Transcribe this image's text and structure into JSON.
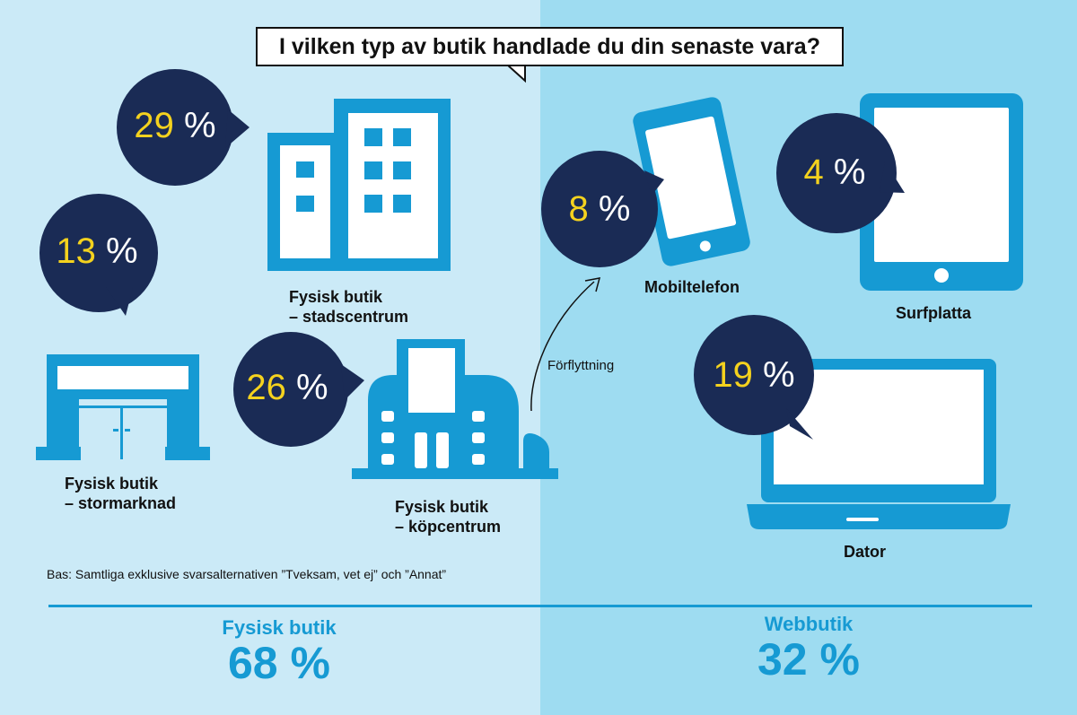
{
  "title": "I vilken typ av butik handlade du din senaste vara?",
  "chart_data": {
    "type": "infographic",
    "categories": [
      {
        "group": "Fysisk butik",
        "label_lines": [
          "Fysisk butik",
          "– stadscentrum"
        ],
        "value": 29,
        "icon": "city-building-icon"
      },
      {
        "group": "Fysisk butik",
        "label_lines": [
          "Fysisk butik",
          "– stormarknad"
        ],
        "value": 13,
        "icon": "supermarket-icon"
      },
      {
        "group": "Fysisk butik",
        "label_lines": [
          "Fysisk butik",
          "– köpcentrum"
        ],
        "value": 26,
        "icon": "mall-icon"
      },
      {
        "group": "Webbutik",
        "label_lines": [
          "Mobiltelefon"
        ],
        "value": 8,
        "icon": "mobile-phone-icon"
      },
      {
        "group": "Webbutik",
        "label_lines": [
          "Surfplatta"
        ],
        "value": 4,
        "icon": "tablet-icon"
      },
      {
        "group": "Webbutik",
        "label_lines": [
          "Dator"
        ],
        "value": 19,
        "icon": "laptop-icon"
      }
    ],
    "totals": [
      {
        "label": "Fysisk butik",
        "value": 68
      },
      {
        "label": "Webbutik",
        "value": 32
      }
    ],
    "unit": "%",
    "annotation": "Förflyttning",
    "note": "Bas: Samtliga exklusive svarsalternativen ”Tveksam, vet ej” och ”Annat”"
  },
  "colors": {
    "left_background": "#cbeaf7",
    "right_background": "#9edcf1",
    "bubble": "#1a2b55",
    "number": "#f4d21e",
    "icon": "#169ad3",
    "total_text": "#169ad3"
  }
}
